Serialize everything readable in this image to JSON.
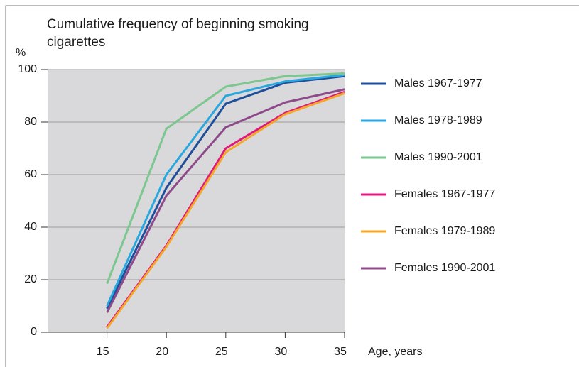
{
  "chart_data": {
    "type": "line",
    "title": "Cumulative frequency of beginning smoking cigarettes",
    "ylabel": "%",
    "xlabel": "Age, years",
    "x": [
      15,
      20,
      25,
      30,
      35
    ],
    "xlim": [
      10,
      35
    ],
    "xticks": [
      15,
      20,
      25,
      30,
      35
    ],
    "ylim": [
      0,
      100
    ],
    "yticks": [
      0,
      20,
      40,
      60,
      80,
      100
    ],
    "grid": true,
    "legend": "right",
    "series": [
      {
        "name": "Males 1967-1977",
        "color": "#1f4e9a",
        "values": [
          9,
          55,
          87,
          95,
          97.5
        ]
      },
      {
        "name": "Males 1978-1989",
        "color": "#29a8e0",
        "values": [
          10,
          60,
          90,
          95.5,
          98
        ]
      },
      {
        "name": "Males 1990-2001",
        "color": "#7cc68f",
        "values": [
          18.5,
          77.5,
          93.5,
          97.5,
          98.5
        ]
      },
      {
        "name": "Females 1967-1977",
        "color": "#e0197d",
        "values": [
          2,
          33,
          70,
          83.5,
          91.5
        ]
      },
      {
        "name": "Females 1979-1989",
        "color": "#f4a82b",
        "values": [
          1.5,
          32.5,
          68.5,
          83,
          91
        ]
      },
      {
        "name": "Females 1990-2001",
        "color": "#8e4a8a",
        "values": [
          7.5,
          52,
          78,
          87.5,
          92.5
        ]
      }
    ]
  }
}
